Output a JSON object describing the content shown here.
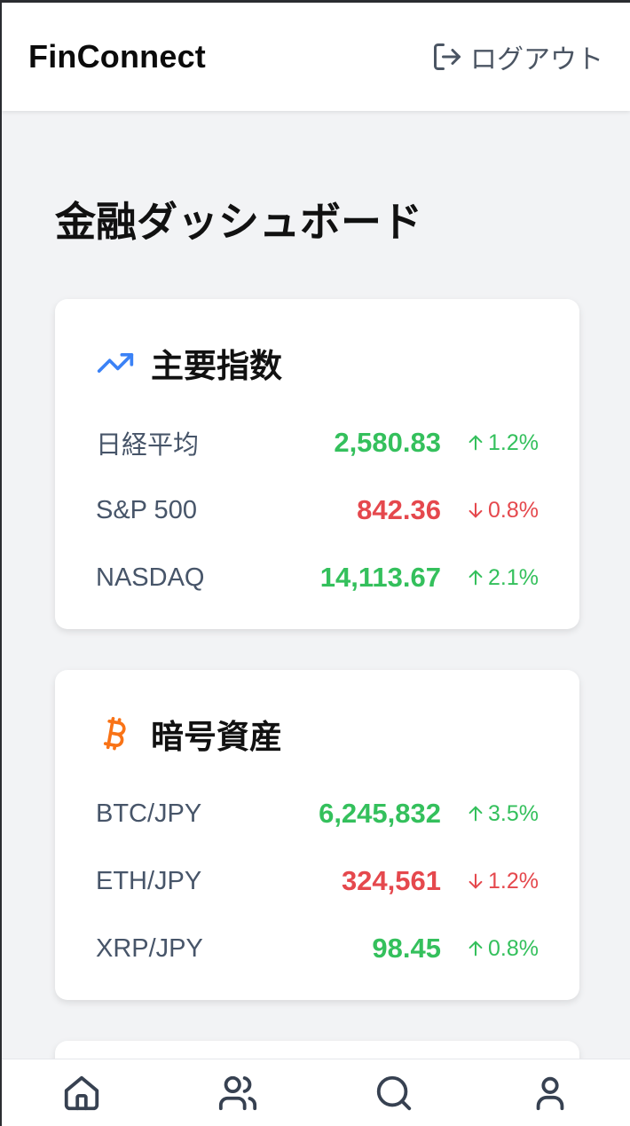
{
  "header": {
    "brand": "FinConnect",
    "logout_label": "ログアウト"
  },
  "page": {
    "title": "金融ダッシュボード"
  },
  "colors": {
    "up": "#34c05c",
    "down": "#e5484d",
    "accent": "#3b82f6",
    "bitcoin": "#f97316"
  },
  "sections": [
    {
      "title": "主要指数",
      "icon": "trending-up-icon",
      "rows": [
        {
          "name": "日経平均",
          "price": "2,580.83",
          "change": "1.2%",
          "direction": "up"
        },
        {
          "name": "S&P 500",
          "price": "842.36",
          "change": "0.8%",
          "direction": "down"
        },
        {
          "name": "NASDAQ",
          "price": "14,113.67",
          "change": "2.1%",
          "direction": "up"
        }
      ]
    },
    {
      "title": "暗号資産",
      "icon": "bitcoin-icon",
      "rows": [
        {
          "name": "BTC/JPY",
          "price": "6,245,832",
          "change": "3.5%",
          "direction": "up"
        },
        {
          "name": "ETH/JPY",
          "price": "324,561",
          "change": "1.2%",
          "direction": "down"
        },
        {
          "name": "XRP/JPY",
          "price": "98.45",
          "change": "0.8%",
          "direction": "up"
        }
      ]
    }
  ],
  "bottom_nav": [
    {
      "icon": "home-icon"
    },
    {
      "icon": "users-icon"
    },
    {
      "icon": "search-icon"
    },
    {
      "icon": "user-icon"
    }
  ]
}
